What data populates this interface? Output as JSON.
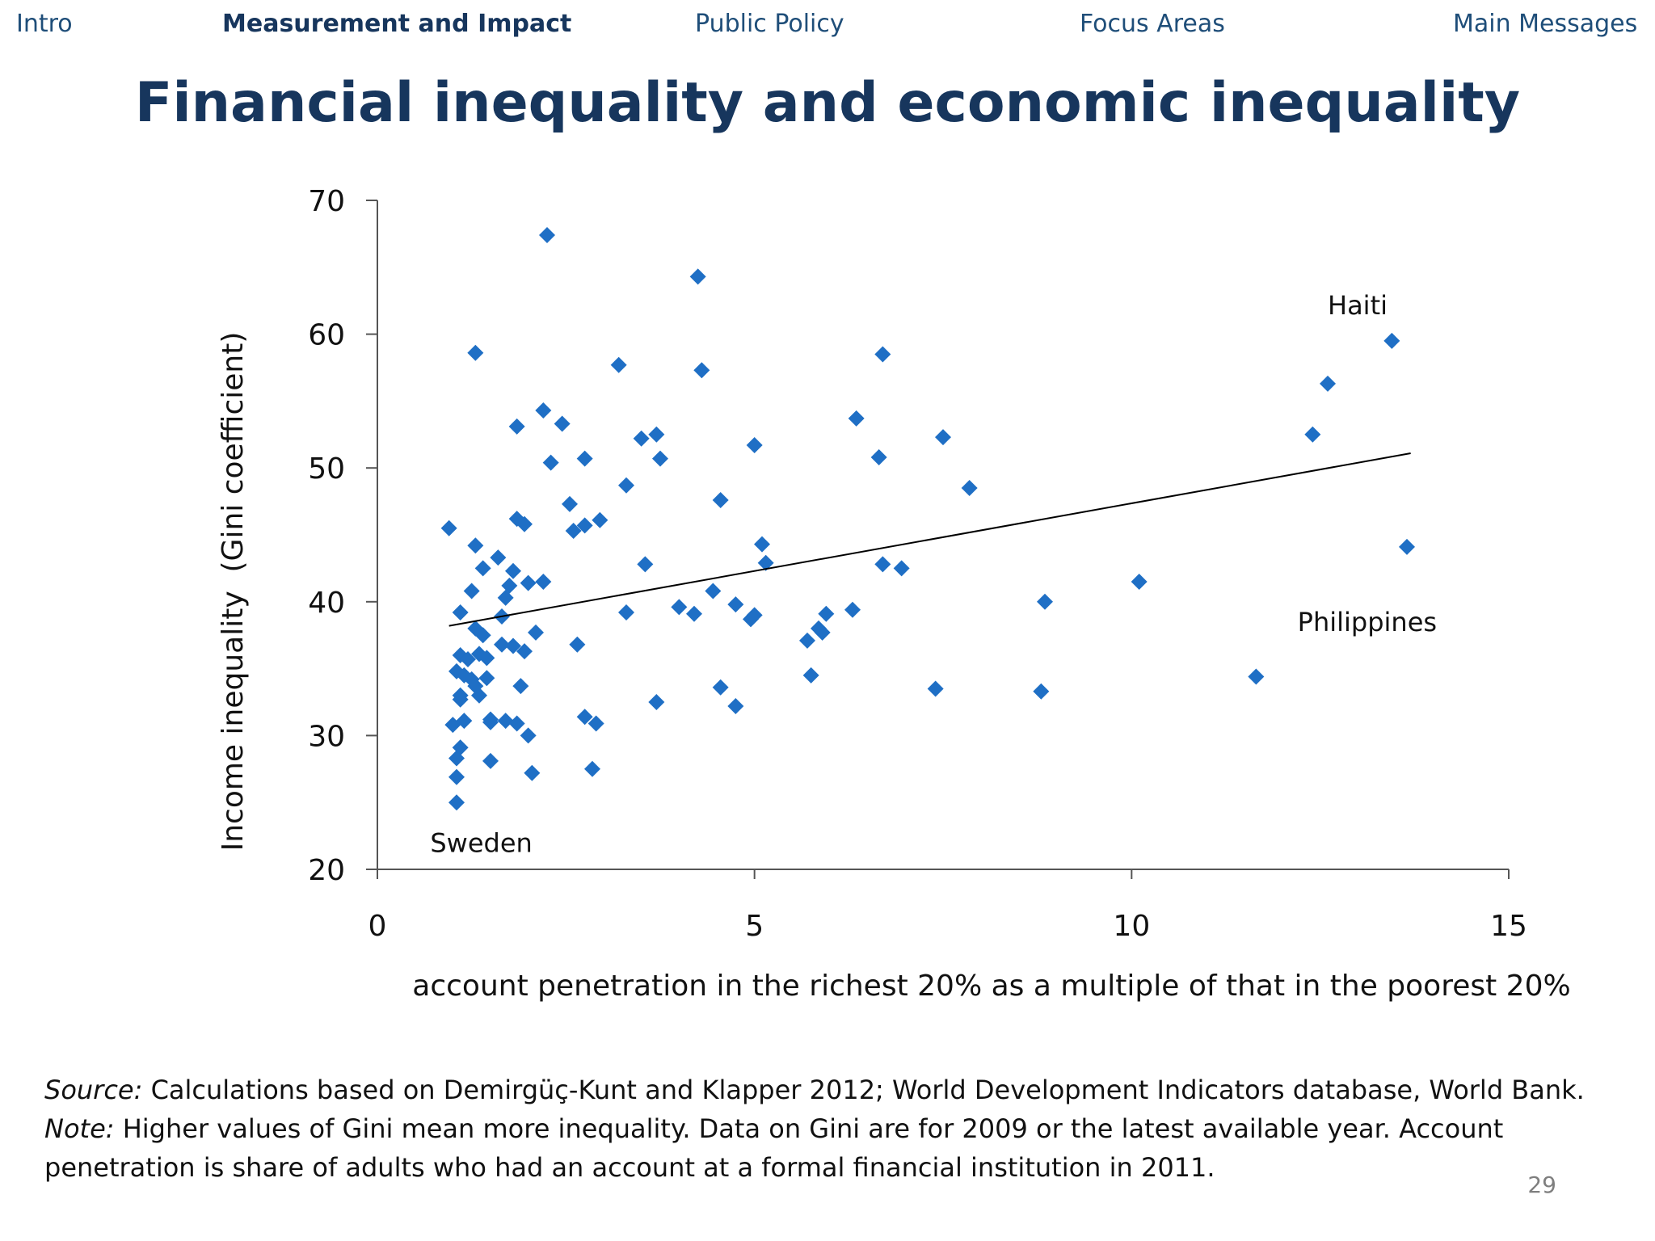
{
  "nav": {
    "items": [
      {
        "label": "Intro",
        "active": false
      },
      {
        "label": "Measurement and Impact",
        "active": true
      },
      {
        "label": "Public Policy",
        "active": false
      },
      {
        "label": "Focus Areas",
        "active": false
      },
      {
        "label": "Main Messages",
        "active": false
      }
    ]
  },
  "title": "Financial inequality and economic inequality",
  "colors": {
    "marker": "#1f6fc5",
    "trendline": "#000000",
    "text": "#17365d"
  },
  "chart_data": {
    "type": "scatter",
    "xlabel": "account penetration in the richest 20% as a multiple of that in the poorest 20%",
    "ylabel": "Income inequality  (Gini coefficient)",
    "xlim": [
      0,
      15
    ],
    "ylim": [
      20,
      70
    ],
    "xticks": [
      0,
      5,
      10,
      15
    ],
    "yticks": [
      20,
      30,
      40,
      50,
      60,
      70
    ],
    "grid": false,
    "marker": "diamond",
    "points": [
      [
        0.95,
        45.5
      ],
      [
        1.0,
        30.8
      ],
      [
        1.05,
        34.8
      ],
      [
        1.1,
        33.0
      ],
      [
        1.05,
        28.3
      ],
      [
        1.05,
        26.9
      ],
      [
        1.05,
        25.0
      ],
      [
        1.1,
        32.7
      ],
      [
        1.1,
        36.0
      ],
      [
        1.1,
        39.2
      ],
      [
        1.1,
        29.1
      ],
      [
        1.15,
        31.1
      ],
      [
        1.15,
        34.5
      ],
      [
        1.2,
        35.7
      ],
      [
        1.25,
        40.8
      ],
      [
        1.25,
        34.2
      ],
      [
        1.3,
        38.0
      ],
      [
        1.3,
        33.7
      ],
      [
        1.3,
        44.2
      ],
      [
        1.3,
        58.6
      ],
      [
        1.35,
        33.0
      ],
      [
        1.35,
        36.1
      ],
      [
        1.4,
        37.5
      ],
      [
        1.4,
        42.5
      ],
      [
        1.45,
        34.3
      ],
      [
        1.45,
        35.8
      ],
      [
        1.5,
        28.1
      ],
      [
        1.5,
        31.2
      ],
      [
        1.5,
        31.0
      ],
      [
        1.6,
        43.3
      ],
      [
        1.65,
        38.9
      ],
      [
        1.65,
        36.8
      ],
      [
        1.7,
        31.1
      ],
      [
        1.7,
        40.3
      ],
      [
        1.75,
        41.2
      ],
      [
        1.8,
        36.7
      ],
      [
        1.8,
        42.3
      ],
      [
        1.85,
        53.1
      ],
      [
        1.85,
        46.2
      ],
      [
        1.85,
        30.9
      ],
      [
        1.9,
        33.7
      ],
      [
        1.95,
        36.3
      ],
      [
        1.95,
        45.8
      ],
      [
        2.0,
        41.4
      ],
      [
        2.0,
        30.0
      ],
      [
        2.05,
        27.2
      ],
      [
        2.1,
        37.7
      ],
      [
        2.2,
        54.3
      ],
      [
        2.2,
        41.5
      ],
      [
        2.25,
        67.4
      ],
      [
        2.3,
        50.4
      ],
      [
        2.45,
        53.3
      ],
      [
        2.55,
        47.3
      ],
      [
        2.6,
        45.3
      ],
      [
        2.65,
        36.8
      ],
      [
        2.75,
        45.7
      ],
      [
        2.75,
        50.7
      ],
      [
        2.75,
        31.4
      ],
      [
        2.85,
        27.5
      ],
      [
        2.9,
        30.9
      ],
      [
        2.95,
        46.1
      ],
      [
        3.2,
        57.7
      ],
      [
        3.3,
        48.7
      ],
      [
        3.3,
        39.2
      ],
      [
        3.5,
        52.2
      ],
      [
        3.55,
        42.8
      ],
      [
        3.7,
        52.5
      ],
      [
        3.7,
        32.5
      ],
      [
        3.75,
        50.7
      ],
      [
        4.0,
        39.6
      ],
      [
        4.2,
        39.1
      ],
      [
        4.25,
        64.3
      ],
      [
        4.3,
        57.3
      ],
      [
        4.45,
        40.8
      ],
      [
        4.55,
        47.6
      ],
      [
        4.55,
        33.6
      ],
      [
        4.75,
        39.8
      ],
      [
        4.75,
        32.2
      ],
      [
        4.95,
        38.7
      ],
      [
        5.0,
        39.0
      ],
      [
        5.0,
        51.7
      ],
      [
        5.1,
        44.3
      ],
      [
        5.15,
        42.9
      ],
      [
        5.7,
        37.1
      ],
      [
        5.75,
        34.5
      ],
      [
        5.85,
        38.0
      ],
      [
        5.9,
        37.7
      ],
      [
        5.95,
        39.1
      ],
      [
        6.3,
        39.4
      ],
      [
        6.35,
        53.7
      ],
      [
        6.65,
        50.8
      ],
      [
        6.7,
        58.5
      ],
      [
        6.7,
        42.8
      ],
      [
        6.95,
        42.5
      ],
      [
        7.4,
        33.5
      ],
      [
        7.5,
        52.3
      ],
      [
        7.85,
        48.5
      ],
      [
        8.8,
        33.3
      ],
      [
        8.85,
        40.0
      ],
      [
        10.1,
        41.5
      ],
      [
        11.65,
        34.4
      ],
      [
        12.4,
        52.5
      ],
      [
        12.6,
        56.3
      ],
      [
        13.45,
        59.5
      ],
      [
        13.65,
        44.1
      ]
    ],
    "trendline": {
      "x1": 0.95,
      "y1": 38.2,
      "x2": 13.7,
      "y2": 51.1
    },
    "annotations": [
      {
        "text": "Haiti",
        "x": 12.6,
        "y": 61.5
      },
      {
        "text": "Philippines",
        "x": 12.2,
        "y": 37.8
      },
      {
        "text": "Sweden",
        "x": 0.7,
        "y": 21.3
      }
    ]
  },
  "footer": {
    "source_label": "Source:",
    "source_text": "Calculations based on Demirgüç-Kunt and Klapper 2012; World Development Indicators database, World Bank.",
    "note_label": "Note:",
    "note_text": "Higher values of Gini mean more inequality. Data on Gini are for 2009 or the latest available year. Account penetration is share of adults who had an account at a formal financial institution in 2011."
  },
  "page_number": "29"
}
